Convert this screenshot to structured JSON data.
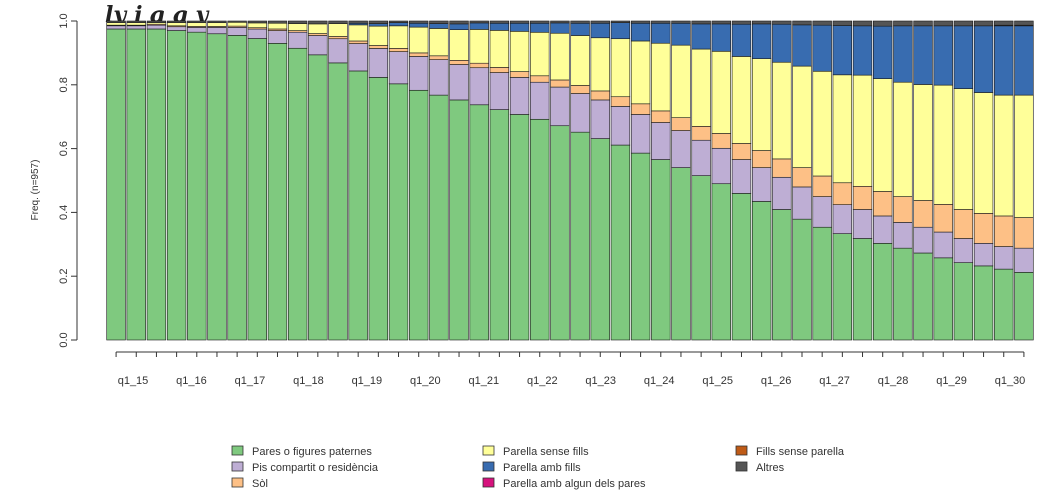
{
  "chart_data": {
    "type": "bar",
    "stacked": true,
    "title_visible_fragment": "ly                                         j        g  g   y",
    "ylabel": "Freq. (n=957)",
    "ylim": [
      0,
      1.0
    ],
    "yticks": [
      "0.0",
      "0.2",
      "0.4",
      "0.6",
      "0.8",
      "1.0"
    ],
    "x_tick_labels": [
      "q1_15",
      "q1_16",
      "q1_17",
      "q1_18",
      "q1_19",
      "q1_20",
      "q1_21",
      "q1_22",
      "q1_23",
      "q1_24",
      "q1_25",
      "q1_26",
      "q1_27",
      "q1_28",
      "q1_29",
      "q1_30"
    ],
    "bar_count": 46,
    "legend_position": "bottom",
    "series": [
      {
        "name": "Pares o figures paternes",
        "color": "#7fc97f",
        "values": [
          0.975,
          0.975,
          0.975,
          0.97,
          0.965,
          0.96,
          0.955,
          0.945,
          0.93,
          0.91,
          0.885,
          0.86,
          0.835,
          0.815,
          0.795,
          0.775,
          0.76,
          0.745,
          0.73,
          0.715,
          0.7,
          0.685,
          0.665,
          0.645,
          0.625,
          0.605,
          0.58,
          0.56,
          0.535,
          0.51,
          0.485,
          0.455,
          0.43,
          0.405,
          0.375,
          0.35,
          0.33,
          0.315,
          0.3,
          0.285,
          0.27,
          0.255,
          0.24,
          0.23,
          0.22,
          0.21
        ]
      },
      {
        "name": "Pis compartit o residència",
        "color": "#beaed4",
        "values": [
          0.01,
          0.01,
          0.012,
          0.012,
          0.015,
          0.02,
          0.025,
          0.03,
          0.04,
          0.05,
          0.06,
          0.075,
          0.085,
          0.09,
          0.1,
          0.105,
          0.11,
          0.11,
          0.115,
          0.115,
          0.115,
          0.115,
          0.12,
          0.12,
          0.12,
          0.12,
          0.12,
          0.115,
          0.115,
          0.11,
          0.11,
          0.105,
          0.105,
          0.1,
          0.1,
          0.095,
          0.09,
          0.09,
          0.085,
          0.08,
          0.08,
          0.08,
          0.075,
          0.07,
          0.07,
          0.075
        ]
      },
      {
        "name": "Sòl",
        "color": "#fdc086",
        "values": [
          0.002,
          0.002,
          0.003,
          0.003,
          0.003,
          0.003,
          0.004,
          0.004,
          0.005,
          0.005,
          0.006,
          0.007,
          0.008,
          0.009,
          0.01,
          0.011,
          0.012,
          0.013,
          0.014,
          0.016,
          0.018,
          0.02,
          0.022,
          0.025,
          0.028,
          0.03,
          0.033,
          0.036,
          0.04,
          0.043,
          0.046,
          0.05,
          0.053,
          0.057,
          0.06,
          0.064,
          0.068,
          0.072,
          0.076,
          0.08,
          0.083,
          0.086,
          0.09,
          0.093,
          0.095,
          0.095
        ]
      },
      {
        "name": "Parella sense fills",
        "color": "#ffff99",
        "values": [
          0.008,
          0.008,
          0.005,
          0.01,
          0.012,
          0.012,
          0.012,
          0.015,
          0.018,
          0.022,
          0.03,
          0.04,
          0.05,
          0.06,
          0.07,
          0.08,
          0.085,
          0.095,
          0.105,
          0.115,
          0.125,
          0.135,
          0.145,
          0.155,
          0.165,
          0.18,
          0.195,
          0.21,
          0.225,
          0.24,
          0.255,
          0.27,
          0.285,
          0.3,
          0.315,
          0.325,
          0.335,
          0.345,
          0.35,
          0.355,
          0.36,
          0.37,
          0.375,
          0.375,
          0.375,
          0.38
        ]
      },
      {
        "name": "Parella amb fills",
        "color": "#386cb0",
        "values": [
          0.0,
          0.0,
          0.0,
          0.0,
          0.0,
          0.0,
          0.0,
          0.0,
          0.0,
          0.0,
          0.0,
          0.0,
          0.005,
          0.008,
          0.01,
          0.012,
          0.015,
          0.018,
          0.02,
          0.022,
          0.025,
          0.028,
          0.032,
          0.038,
          0.045,
          0.05,
          0.055,
          0.062,
          0.068,
          0.078,
          0.085,
          0.1,
          0.108,
          0.118,
          0.128,
          0.143,
          0.153,
          0.153,
          0.163,
          0.175,
          0.182,
          0.184,
          0.195,
          0.207,
          0.215,
          0.215
        ]
      },
      {
        "name": "Parella amb algun dels pares",
        "color": "#d6127d",
        "values": [
          0,
          0,
          0,
          0,
          0,
          0,
          0,
          0,
          0,
          0,
          0,
          0,
          0,
          0,
          0,
          0,
          0,
          0,
          0,
          0,
          0,
          0,
          0,
          0,
          0,
          0,
          0,
          0,
          0,
          0,
          0,
          0,
          0,
          0,
          0,
          0,
          0,
          0,
          0,
          0,
          0,
          0,
          0,
          0,
          0,
          0
        ]
      },
      {
        "name": "Fills sense parella",
        "color": "#bf5b17",
        "values": [
          0,
          0,
          0,
          0,
          0,
          0,
          0,
          0,
          0,
          0,
          0,
          0,
          0,
          0,
          0,
          0,
          0,
          0,
          0,
          0,
          0,
          0,
          0,
          0,
          0,
          0,
          0,
          0,
          0,
          0,
          0,
          0,
          0,
          0,
          0,
          0,
          0,
          0,
          0,
          0,
          0,
          0,
          0,
          0,
          0.002,
          0.002
        ]
      },
      {
        "name": "Altres",
        "color": "#555555",
        "values": [
          0.005,
          0.005,
          0.005,
          0.005,
          0.005,
          0.005,
          0.004,
          0.006,
          0.007,
          0.008,
          0.009,
          0.008,
          0.007,
          0.008,
          0.005,
          0.007,
          0.008,
          0.009,
          0.006,
          0.007,
          0.007,
          0.007,
          0.006,
          0.007,
          0.007,
          0.005,
          0.007,
          0.007,
          0.007,
          0.009,
          0.009,
          0.01,
          0.009,
          0.01,
          0.012,
          0.013,
          0.014,
          0.015,
          0.016,
          0.015,
          0.015,
          0.015,
          0.015,
          0.015,
          0.013,
          0.013
        ]
      }
    ],
    "legend_layout": [
      [
        "Pares o figures paternes",
        "Pis compartit o residència",
        "Sòl"
      ],
      [
        "Parella sense fills",
        "Parella amb fills",
        "Parella amb algun dels pares"
      ],
      [
        "Fills sense parella",
        "Altres"
      ]
    ]
  }
}
